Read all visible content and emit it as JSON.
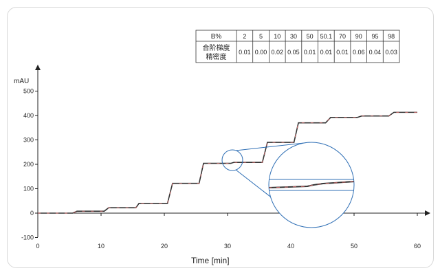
{
  "chart_data": {
    "type": "line",
    "ylabel": "mAU",
    "xlabel": "Time [min]",
    "xlim": [
      0,
      60
    ],
    "ylim": [
      -100,
      500
    ],
    "x_ticks": [
      0,
      10,
      20,
      30,
      40,
      50,
      60
    ],
    "y_ticks": [
      -100,
      0,
      100,
      200,
      300,
      400,
      500
    ],
    "series": [
      {
        "color": "#333333",
        "highlight_color": "#d06a6a",
        "x": [
          0,
          5.5,
          6.2,
          10.5,
          11.2,
          15.5,
          16.0,
          20.5,
          21.3,
          25.5,
          26.2,
          30.5,
          31.0,
          35.5,
          36.3,
          40.5,
          41.2,
          45.5,
          46.3,
          50.5,
          51.2,
          55.5,
          56.3,
          60
        ],
        "y": [
          0,
          0,
          8,
          8,
          22,
          22,
          40,
          40,
          122,
          122,
          204,
          204,
          208,
          208,
          290,
          290,
          370,
          370,
          392,
          392,
          398,
          398,
          413,
          413
        ]
      }
    ],
    "zoom_inset": {
      "source_x": 31.0,
      "source_y": 208,
      "line_color": "#2f6fb5"
    },
    "table": {
      "header_label": "B%",
      "columns": [
        "2",
        "5",
        "10",
        "30",
        "50",
        "50.1",
        "70",
        "90",
        "95",
        "98"
      ],
      "row_label": [
        "合阶梯度",
        "精密度"
      ],
      "values": [
        "0.01",
        "0.00",
        "0.02",
        "0.05",
        "0.01",
        "0.01",
        "0.01",
        "0.06",
        "0.04",
        "0.03"
      ]
    }
  }
}
